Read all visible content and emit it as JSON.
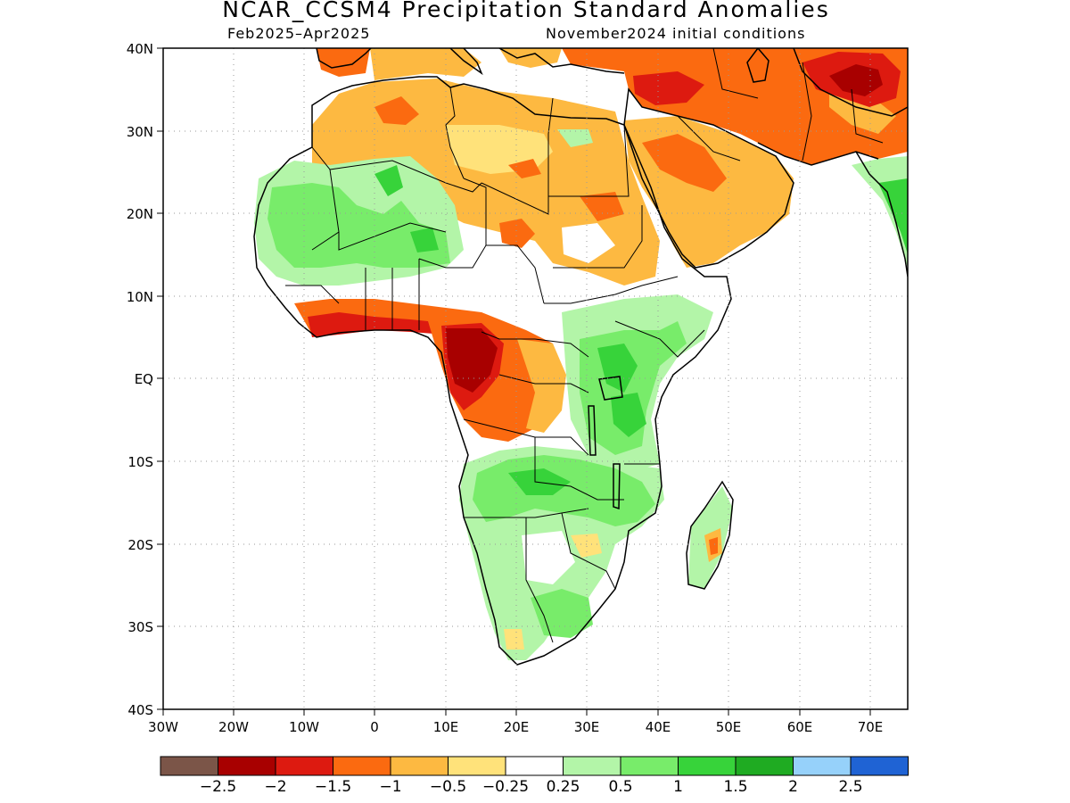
{
  "title": "NCAR_CCSM4 Precipitation Standard Anomalies",
  "period": "Feb2025–Apr2025",
  "init": "November2024 initial conditions",
  "lat_labels": [
    "40N",
    "30N",
    "20N",
    "10N",
    "EQ",
    "10S",
    "20S",
    "30S",
    "40S"
  ],
  "lon_labels": [
    "30W",
    "20W",
    "10W",
    "0",
    "10E",
    "20E",
    "30E",
    "40E",
    "50E",
    "60E",
    "70E"
  ],
  "colorbar": {
    "colors": [
      "#7b5548",
      "#a80000",
      "#dd1a10",
      "#fb6a10",
      "#fdb941",
      "#ffe27a",
      "#ffffff",
      "#b3f5a8",
      "#78ec6a",
      "#37d33a",
      "#1fab22",
      "#96d1fa",
      "#1f63d4"
    ],
    "labels": [
      "−2.5",
      "−2",
      "−1.5",
      "−1",
      "−0.5",
      "−0.25",
      "0.25",
      "0.5",
      "1",
      "1.5",
      "2",
      "2.5"
    ]
  },
  "map": {
    "lon_range": [
      -30,
      75
    ],
    "lat_range": [
      -40,
      40
    ],
    "land_fill": "#ffffff",
    "anomaly_regions": [
      {
        "level": "-1",
        "area": "Sahara north-west (Morocco/Algeria)"
      },
      {
        "level": "-0.5",
        "area": "Sahara / Sahel belt"
      },
      {
        "level": "-1.5",
        "area": "Gulf of Guinea coast"
      },
      {
        "level": "-2",
        "area": "Cameroon / Gabon / Congo"
      },
      {
        "level": "-1",
        "area": "Central Africa / Congo basin"
      },
      {
        "level": "-1",
        "area": "Arabian Peninsula / Middle East"
      },
      {
        "level": "-2",
        "area": "Iran / Afghanistan"
      },
      {
        "level": "0.5",
        "area": "West Africa / Sahel"
      },
      {
        "level": "1",
        "area": "East Africa / Great Lakes"
      },
      {
        "level": "0.5",
        "area": "Southern Africa"
      },
      {
        "level": "1",
        "area": "India west coast"
      }
    ]
  }
}
